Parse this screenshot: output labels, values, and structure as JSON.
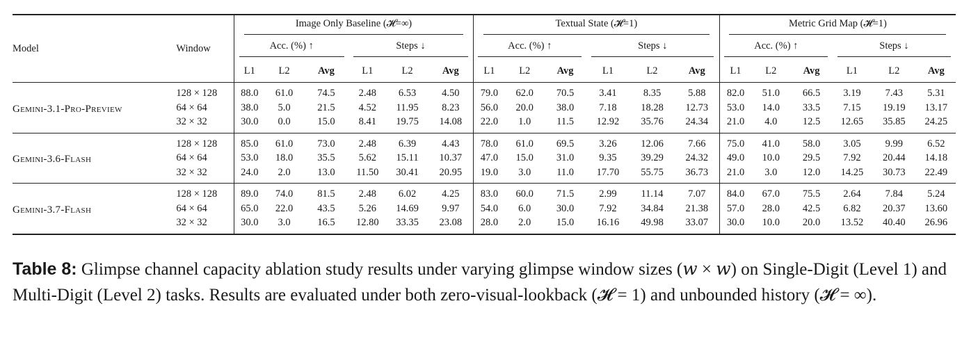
{
  "table": {
    "header": {
      "model": "Model",
      "window": "Window",
      "groups": [
        {
          "label": "Image Only Baseline (𝓗=∞)"
        },
        {
          "label": "Textual State (𝓗=1)"
        },
        {
          "label": "Metric Grid Map (𝓗=1)"
        }
      ],
      "acc_label": "Acc. (%) ↑",
      "steps_label": "Steps ↓",
      "col_labels": [
        "L1",
        "L2",
        "Avg"
      ]
    },
    "models": [
      {
        "name": "Gemini-3.1-Pro-Preview",
        "rows": [
          {
            "window": "128 × 128",
            "values": [
              "88.0",
              "61.0",
              "74.5",
              "2.48",
              "6.53",
              "4.50",
              "79.0",
              "62.0",
              "70.5",
              "3.41",
              "8.35",
              "5.88",
              "82.0",
              "51.0",
              "66.5",
              "3.19",
              "7.43",
              "5.31"
            ]
          },
          {
            "window": "64 × 64",
            "values": [
              "38.0",
              "5.0",
              "21.5",
              "4.52",
              "11.95",
              "8.23",
              "56.0",
              "20.0",
              "38.0",
              "7.18",
              "18.28",
              "12.73",
              "53.0",
              "14.0",
              "33.5",
              "7.15",
              "19.19",
              "13.17"
            ]
          },
          {
            "window": "32 × 32",
            "values": [
              "30.0",
              "0.0",
              "15.0",
              "8.41",
              "19.75",
              "14.08",
              "22.0",
              "1.0",
              "11.5",
              "12.92",
              "35.76",
              "24.34",
              "21.0",
              "4.0",
              "12.5",
              "12.65",
              "35.85",
              "24.25"
            ]
          }
        ]
      },
      {
        "name": "Gemini-3.6-Flash",
        "rows": [
          {
            "window": "128 × 128",
            "values": [
              "85.0",
              "61.0",
              "73.0",
              "2.48",
              "6.39",
              "4.43",
              "78.0",
              "61.0",
              "69.5",
              "3.26",
              "12.06",
              "7.66",
              "75.0",
              "41.0",
              "58.0",
              "3.05",
              "9.99",
              "6.52"
            ]
          },
          {
            "window": "64 × 64",
            "values": [
              "53.0",
              "18.0",
              "35.5",
              "5.62",
              "15.11",
              "10.37",
              "47.0",
              "15.0",
              "31.0",
              "9.35",
              "39.29",
              "24.32",
              "49.0",
              "10.0",
              "29.5",
              "7.92",
              "20.44",
              "14.18"
            ]
          },
          {
            "window": "32 × 32",
            "values": [
              "24.0",
              "2.0",
              "13.0",
              "11.50",
              "30.41",
              "20.95",
              "19.0",
              "3.0",
              "11.0",
              "17.70",
              "55.75",
              "36.73",
              "21.0",
              "3.0",
              "12.0",
              "14.25",
              "30.73",
              "22.49"
            ]
          }
        ]
      },
      {
        "name": "Gemini-3.7-Flash",
        "rows": [
          {
            "window": "128 × 128",
            "values": [
              "89.0",
              "74.0",
              "81.5",
              "2.48",
              "6.02",
              "4.25",
              "83.0",
              "60.0",
              "71.5",
              "2.99",
              "11.14",
              "7.07",
              "84.0",
              "67.0",
              "75.5",
              "2.64",
              "7.84",
              "5.24"
            ]
          },
          {
            "window": "64 × 64",
            "values": [
              "65.0",
              "22.0",
              "43.5",
              "5.26",
              "14.69",
              "9.97",
              "54.0",
              "6.0",
              "30.0",
              "7.92",
              "34.84",
              "21.38",
              "57.0",
              "28.0",
              "42.5",
              "6.82",
              "20.37",
              "13.60"
            ]
          },
          {
            "window": "32 × 32",
            "values": [
              "30.0",
              "3.0",
              "16.5",
              "12.80",
              "33.35",
              "23.08",
              "28.0",
              "2.0",
              "15.0",
              "16.16",
              "49.98",
              "33.07",
              "30.0",
              "10.0",
              "20.0",
              "13.52",
              "40.40",
              "26.96"
            ]
          }
        ]
      }
    ]
  },
  "caption": {
    "label": "Table 8:",
    "text": "Glimpse channel capacity ablation study results under varying glimpse window sizes (𝑤 × 𝑤) on Single-Digit (Level 1) and Multi-Digit (Level 2) tasks. Results are evaluated under both zero-visual-lookback (𝓗 = 1) and unbounded history (𝓗 = ∞)."
  }
}
